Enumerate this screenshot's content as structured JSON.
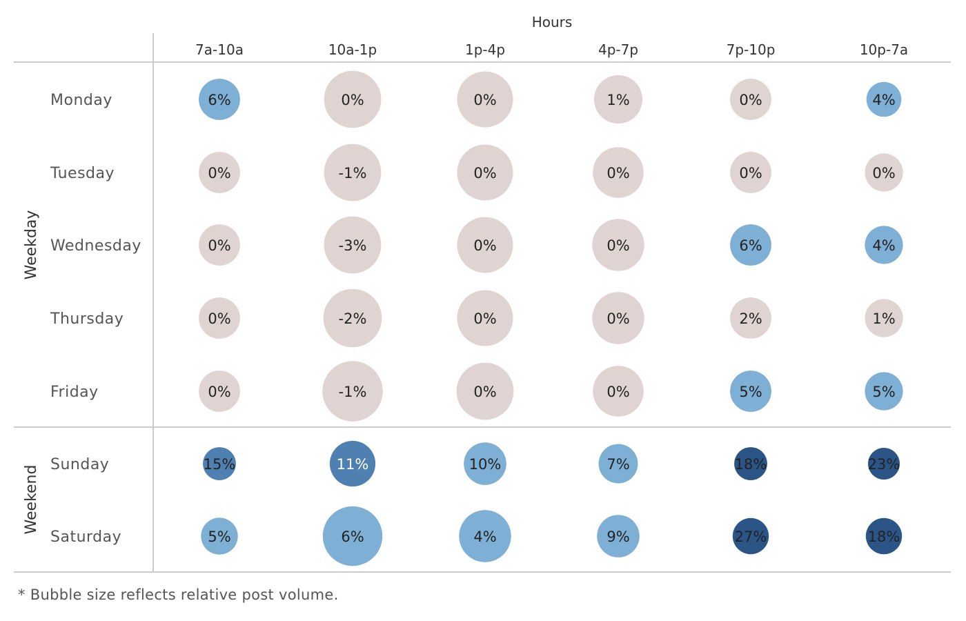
{
  "chart_data": {
    "type": "bubble-table",
    "column_title": "Hours",
    "columns": [
      "7a-10a",
      "10a-1p",
      "1p-4p",
      "4p-7p",
      "7p-10p",
      "10p-7a"
    ],
    "groups": [
      {
        "name": "Weekday",
        "rows": [
          "Monday",
          "Tuesday",
          "Wednesday",
          "Thursday",
          "Friday"
        ]
      },
      {
        "name": "Weekend",
        "rows": [
          "Sunday",
          "Saturday"
        ]
      }
    ],
    "rows": [
      "Monday",
      "Tuesday",
      "Wednesday",
      "Thursday",
      "Friday",
      "Sunday",
      "Saturday"
    ],
    "values": [
      [
        6,
        0,
        0,
        1,
        0,
        4
      ],
      [
        0,
        -1,
        0,
        0,
        0,
        0
      ],
      [
        0,
        -3,
        0,
        0,
        6,
        4
      ],
      [
        0,
        -2,
        0,
        0,
        2,
        1
      ],
      [
        0,
        -1,
        0,
        0,
        5,
        5
      ],
      [
        15,
        11,
        10,
        7,
        18,
        23
      ],
      [
        5,
        6,
        4,
        9,
        27,
        18
      ]
    ],
    "value_suffix": "%",
    "relative_volume": [
      [
        0.65,
        0.9,
        0.88,
        0.76,
        0.65,
        0.55
      ],
      [
        0.65,
        0.9,
        0.88,
        0.8,
        0.65,
        0.6
      ],
      [
        0.65,
        0.9,
        0.88,
        0.82,
        0.65,
        0.6
      ],
      [
        0.65,
        0.92,
        0.88,
        0.82,
        0.65,
        0.6
      ],
      [
        0.65,
        0.95,
        0.9,
        0.8,
        0.65,
        0.6
      ],
      [
        0.52,
        0.72,
        0.67,
        0.62,
        0.52,
        0.5
      ],
      [
        0.58,
        0.94,
        0.82,
        0.67,
        0.57,
        0.57
      ]
    ],
    "colors": {
      "neutral": "#dfd4d2",
      "light_blue": "#7eafd5",
      "mid_blue": "#4e80b1",
      "dark_blue": "#2a5586",
      "grid_line": "#cccccc"
    }
  },
  "footnote": "* Bubble size reflects relative post volume."
}
